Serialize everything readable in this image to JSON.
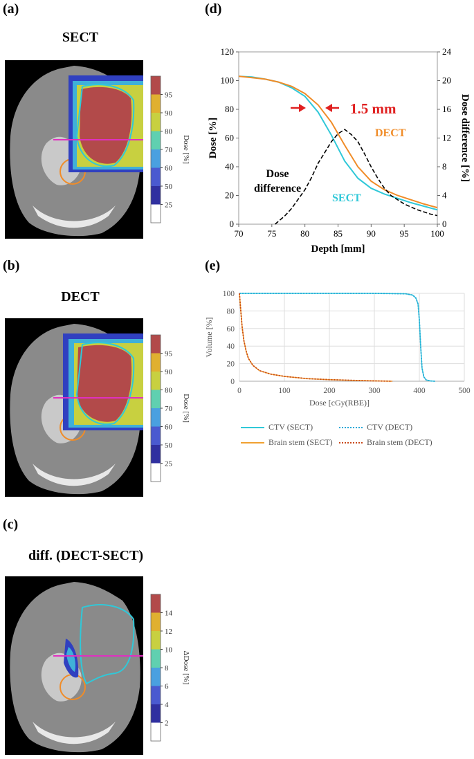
{
  "panels": {
    "a": {
      "label": "(a)",
      "title": "SECT"
    },
    "b": {
      "label": "(b)",
      "title": "DECT"
    },
    "c": {
      "label": "(c)",
      "title": "diff. (DECT-SECT)"
    },
    "d": {
      "label": "(d)"
    },
    "e": {
      "label": "(e)"
    }
  },
  "colorbars": {
    "dose": {
      "label": "Dose [%]",
      "ticks": [
        "95",
        "90",
        "80",
        "70",
        "60",
        "50",
        "25"
      ],
      "colors": [
        "#b24a4a",
        "#e0b030",
        "#c8d040",
        "#60d0b0",
        "#4aa0e0",
        "#4a5ad0",
        "#3030a0",
        "#ffffff"
      ]
    },
    "diff": {
      "label": "ΔDose [%]",
      "ticks": [
        "14",
        "12",
        "10",
        "8",
        "6",
        "4",
        "2"
      ],
      "colors": [
        "#b24a4a",
        "#e0b030",
        "#c8d040",
        "#60d0b0",
        "#4aa0e0",
        "#4a5ad0",
        "#3030a0",
        "#ffffff"
      ]
    }
  },
  "colors": {
    "sect": "#30c8d8",
    "dect": "#f08c28",
    "diff": "#000000",
    "ctv_dect": "#2aa8d8",
    "brain_dect": "#c84818",
    "arrow": "#e02020",
    "ct_bg": "#000000",
    "profile_line": "#e030c0"
  },
  "annotations": {
    "shift": "1.5 mm",
    "dose_difference": [
      "Dose",
      "difference"
    ],
    "dect": "DECT",
    "sect": "SECT"
  },
  "chart_data": [
    {
      "type": "line",
      "xlabel": "Depth [mm]",
      "ylabel": "Dose [%]",
      "y2label": "Dose difference [%]",
      "xlim": [
        70,
        100
      ],
      "ylim": [
        0,
        120
      ],
      "y2lim": [
        0,
        24
      ],
      "xticks": [
        70,
        75,
        80,
        85,
        90,
        95,
        100
      ],
      "yticks": [
        0,
        20,
        40,
        60,
        80,
        100,
        120
      ],
      "y2ticks": [
        0,
        4,
        8,
        12,
        16,
        20,
        24
      ],
      "series": [
        {
          "name": "SECT",
          "axis": "left",
          "x": [
            70,
            72,
            74,
            76,
            78,
            80,
            82,
            84,
            86,
            88,
            90,
            92,
            94,
            96,
            98,
            100
          ],
          "y": [
            103,
            102.5,
            101,
            99,
            95,
            89,
            78,
            62,
            44,
            32,
            25,
            21,
            18,
            15,
            12.5,
            10
          ]
        },
        {
          "name": "DECT",
          "axis": "left",
          "x": [
            70,
            72,
            74,
            76,
            78,
            80,
            82,
            84,
            86,
            88,
            90,
            92,
            94,
            96,
            98,
            100
          ],
          "y": [
            103,
            102,
            101,
            99,
            96,
            91,
            83,
            71,
            55,
            40,
            30,
            24,
            20,
            17,
            14,
            11.5
          ]
        },
        {
          "name": "Dose difference",
          "axis": "right",
          "x": [
            75.5,
            77,
            78,
            79,
            80,
            81,
            82,
            83,
            84,
            85,
            86,
            87,
            88,
            89,
            90,
            91,
            92,
            93,
            94,
            95,
            96,
            97,
            98,
            99,
            100
          ],
          "y": [
            0,
            1.2,
            2.2,
            3.5,
            4.8,
            6.5,
            8.5,
            10,
            11.5,
            12.6,
            13.2,
            12.5,
            11.5,
            9.8,
            8,
            6.4,
            5,
            4,
            3.4,
            2.8,
            2.4,
            2,
            1.7,
            1.4,
            1.2
          ]
        }
      ]
    },
    {
      "type": "line",
      "xlabel": "Dose [cGy(RBE)]",
      "ylabel": "Volume [%]",
      "xlim": [
        0,
        500
      ],
      "ylim": [
        0,
        100
      ],
      "xticks": [
        0,
        100,
        200,
        300,
        400,
        500
      ],
      "yticks": [
        0,
        20,
        40,
        60,
        80,
        100
      ],
      "series": [
        {
          "name": "CTV (SECT)",
          "x": [
            0,
            300,
            370,
            385,
            392,
            397,
            400,
            403,
            406,
            410,
            415,
            425,
            435
          ],
          "y": [
            100,
            100,
            99.5,
            98,
            95,
            88,
            70,
            40,
            15,
            5,
            1.5,
            0.3,
            0
          ]
        },
        {
          "name": "CTV (DECT)",
          "x": [
            0,
            300,
            370,
            385,
            392,
            397,
            400,
            403,
            406,
            410,
            415,
            425,
            435
          ],
          "y": [
            100,
            100,
            99.5,
            98,
            95,
            88,
            70,
            40,
            15,
            5,
            1.5,
            0.3,
            0
          ]
        },
        {
          "name": "Brain stem (SECT)",
          "x": [
            0,
            3,
            6,
            10,
            15,
            20,
            30,
            45,
            70,
            100,
            150,
            200,
            250,
            300,
            340
          ],
          "y": [
            100,
            80,
            62,
            46,
            34,
            26,
            18,
            12,
            8,
            5.5,
            3,
            1.8,
            1,
            0.4,
            0
          ]
        },
        {
          "name": "Brain stem (DECT)",
          "x": [
            0,
            3,
            6,
            10,
            15,
            20,
            30,
            45,
            70,
            100,
            150,
            200,
            250,
            300,
            340
          ],
          "y": [
            100,
            80,
            62,
            46,
            34,
            26,
            18,
            12,
            8,
            5.5,
            3,
            1.8,
            1,
            0.4,
            0
          ]
        }
      ]
    }
  ]
}
